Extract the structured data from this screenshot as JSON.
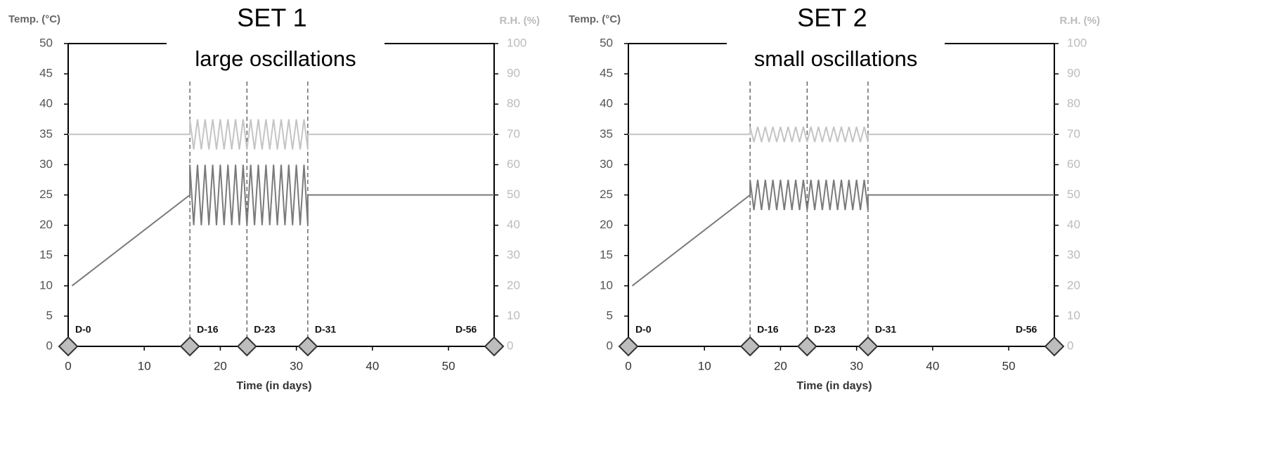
{
  "chart_data": [
    {
      "type": "line",
      "title": "SET 1",
      "subtitle": "large oscillations",
      "ylabel": "Temp. (°C)",
      "y2label": "R.H. (%)",
      "xlabel": "Time (in days)",
      "xlim": [
        0,
        56
      ],
      "xticks": [
        0,
        10,
        20,
        30,
        40,
        50
      ],
      "ylim": [
        0,
        50
      ],
      "yticks": [
        0,
        5,
        10,
        15,
        20,
        25,
        30,
        35,
        40,
        45,
        50
      ],
      "y2lim": [
        0,
        100
      ],
      "y2ticks": [
        0,
        10,
        20,
        30,
        40,
        50,
        60,
        70,
        80,
        90,
        100
      ],
      "events": [
        {
          "x": 0,
          "label": "D-0"
        },
        {
          "x": 16,
          "label": "D-16"
        },
        {
          "x": 23.5,
          "label": "D-23"
        },
        {
          "x": 31.5,
          "label": "D-31"
        },
        {
          "x": 56,
          "label": "D-56"
        }
      ],
      "series": [
        {
          "color": "#7a7a7a",
          "x": [
            0.5,
            16,
            16,
            16.5,
            17,
            17.5,
            18,
            18.5,
            19,
            19.5,
            20,
            20.5,
            21,
            21.5,
            22,
            22.5,
            23,
            23.5,
            24,
            24.5,
            25,
            25.5,
            26,
            26.5,
            27,
            27.5,
            28,
            28.5,
            29,
            29.5,
            30,
            30.5,
            31,
            31.5,
            31.5,
            56
          ],
          "values": [
            10,
            25,
            30,
            20,
            30,
            20,
            30,
            20,
            30,
            20,
            30,
            20,
            30,
            20,
            30,
            20,
            30,
            20,
            30,
            20,
            30,
            20,
            30,
            20,
            30,
            20,
            30,
            20,
            30,
            20,
            30,
            20,
            30,
            20,
            25,
            25
          ]
        },
        {
          "color": "#c4c4c4",
          "axis": "y2",
          "x": [
            0,
            16,
            16,
            16.5,
            17,
            17.5,
            18,
            18.5,
            19,
            19.5,
            20,
            20.5,
            21,
            21.5,
            22,
            22.5,
            23,
            23.5,
            24,
            24.5,
            25,
            25.5,
            26,
            26.5,
            27,
            27.5,
            28,
            28.5,
            29,
            29.5,
            30,
            30.5,
            31,
            31.5,
            31.5,
            56
          ],
          "values": [
            70,
            70,
            75,
            65,
            75,
            65,
            75,
            65,
            75,
            65,
            75,
            65,
            75,
            65,
            75,
            65,
            75,
            65,
            75,
            65,
            75,
            65,
            75,
            65,
            75,
            65,
            75,
            65,
            75,
            65,
            75,
            65,
            75,
            65,
            70,
            70
          ]
        }
      ]
    },
    {
      "type": "line",
      "title": "SET 2",
      "subtitle": "small oscillations",
      "ylabel": "Temp. (°C)",
      "y2label": "R.H. (%)",
      "xlabel": "Time (in days)",
      "xlim": [
        0,
        56
      ],
      "xticks": [
        0,
        10,
        20,
        30,
        40,
        50
      ],
      "ylim": [
        0,
        50
      ],
      "yticks": [
        0,
        5,
        10,
        15,
        20,
        25,
        30,
        35,
        40,
        45,
        50
      ],
      "y2lim": [
        0,
        100
      ],
      "y2ticks": [
        0,
        10,
        20,
        30,
        40,
        50,
        60,
        70,
        80,
        90,
        100
      ],
      "events": [
        {
          "x": 0,
          "label": "D-0"
        },
        {
          "x": 16,
          "label": "D-16"
        },
        {
          "x": 23.5,
          "label": "D-23"
        },
        {
          "x": 31.5,
          "label": "D-31"
        },
        {
          "x": 56,
          "label": "D-56"
        }
      ],
      "series": [
        {
          "color": "#7a7a7a",
          "x": [
            0.5,
            16,
            16,
            16.5,
            17,
            17.5,
            18,
            18.5,
            19,
            19.5,
            20,
            20.5,
            21,
            21.5,
            22,
            22.5,
            23,
            23.5,
            24,
            24.5,
            25,
            25.5,
            26,
            26.5,
            27,
            27.5,
            28,
            28.5,
            29,
            29.5,
            30,
            30.5,
            31,
            31.5,
            31.5,
            56
          ],
          "values": [
            10,
            25,
            27.5,
            22.5,
            27.5,
            22.5,
            27.5,
            22.5,
            27.5,
            22.5,
            27.5,
            22.5,
            27.5,
            22.5,
            27.5,
            22.5,
            27.5,
            22.5,
            27.5,
            22.5,
            27.5,
            22.5,
            27.5,
            22.5,
            27.5,
            22.5,
            27.5,
            22.5,
            27.5,
            22.5,
            27.5,
            22.5,
            27.5,
            22.5,
            25,
            25
          ]
        },
        {
          "color": "#c4c4c4",
          "axis": "y2",
          "x": [
            0,
            16,
            16,
            16.5,
            17,
            17.5,
            18,
            18.5,
            19,
            19.5,
            20,
            20.5,
            21,
            21.5,
            22,
            22.5,
            23,
            23.5,
            24,
            24.5,
            25,
            25.5,
            26,
            26.5,
            27,
            27.5,
            28,
            28.5,
            29,
            29.5,
            30,
            30.5,
            31,
            31.5,
            31.5,
            56
          ],
          "values": [
            70,
            70,
            72.5,
            67.5,
            72.5,
            67.5,
            72.5,
            67.5,
            72.5,
            67.5,
            72.5,
            67.5,
            72.5,
            67.5,
            72.5,
            67.5,
            72.5,
            67.5,
            72.5,
            67.5,
            72.5,
            67.5,
            72.5,
            67.5,
            72.5,
            67.5,
            72.5,
            67.5,
            72.5,
            67.5,
            72.5,
            67.5,
            72.5,
            67.5,
            70,
            70
          ]
        }
      ]
    }
  ]
}
